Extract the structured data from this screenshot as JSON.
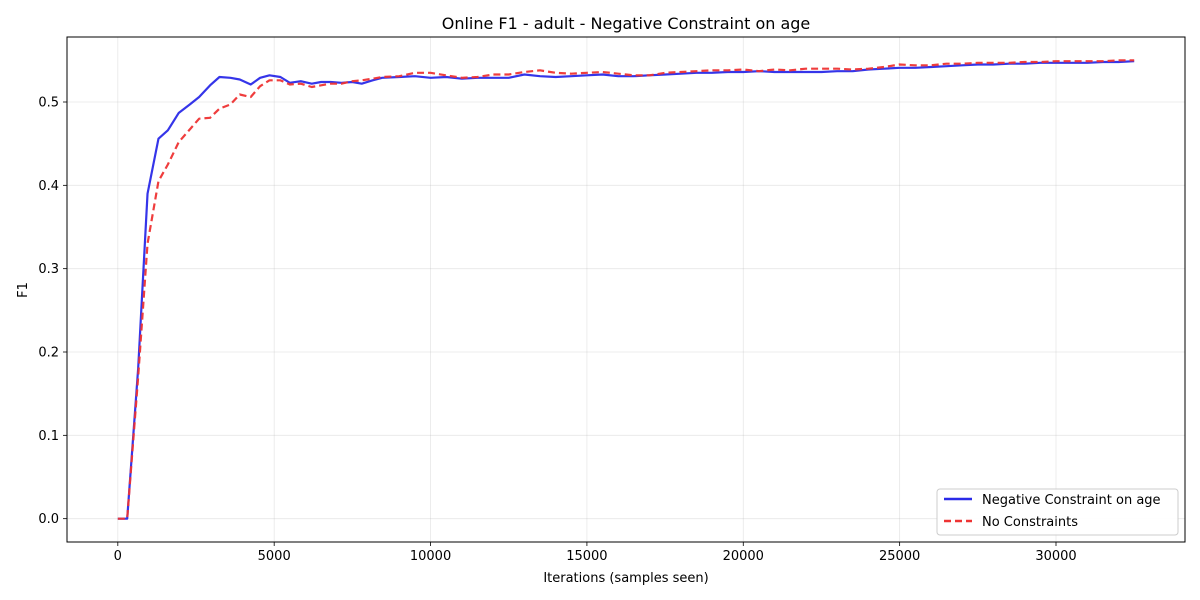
{
  "chart_data": {
    "type": "line",
    "title": "Online F1 - adult - Negative Constraint on age",
    "xlabel": "Iterations (samples seen)",
    "ylabel": "F1",
    "xlim": [
      -1625,
      34125
    ],
    "ylim": [
      -0.028,
      0.578
    ],
    "x_ticks": [
      0,
      5000,
      10000,
      15000,
      20000,
      25000,
      30000
    ],
    "y_ticks": [
      0.0,
      0.1,
      0.2,
      0.3,
      0.4,
      0.5
    ],
    "x_tick_labels": [
      "0",
      "5000",
      "10000",
      "15000",
      "20000",
      "25000",
      "30000"
    ],
    "y_tick_labels": [
      "0.0",
      "0.1",
      "0.2",
      "0.3",
      "0.4",
      "0.5"
    ],
    "grid": true,
    "legend_position": "lower-right",
    "series": [
      {
        "name": "Negative Constraint on age",
        "color": "#2a2ae8",
        "style": "solid",
        "x": [
          0,
          300,
          650,
          950,
          1300,
          1600,
          1950,
          2300,
          2600,
          2950,
          3250,
          3600,
          3900,
          4250,
          4550,
          4850,
          5200,
          5500,
          5850,
          6200,
          6500,
          6800,
          7150,
          7500,
          7800,
          8150,
          8450,
          9000,
          9500,
          10000,
          10500,
          11000,
          11500,
          12000,
          12500,
          13000,
          13500,
          14000,
          14500,
          15000,
          15500,
          16000,
          16500,
          17000,
          17500,
          18000,
          18500,
          19000,
          19500,
          20000,
          20500,
          21000,
          21500,
          22000,
          22500,
          23000,
          23500,
          24000,
          24500,
          25000,
          25500,
          26000,
          26500,
          27000,
          27500,
          28000,
          28500,
          29000,
          29500,
          30000,
          30500,
          31000,
          31500,
          32000,
          32500
        ],
        "values": [
          0.0,
          0.0,
          0.18,
          0.39,
          0.456,
          0.466,
          0.487,
          0.497,
          0.506,
          0.52,
          0.53,
          0.529,
          0.527,
          0.521,
          0.529,
          0.532,
          0.53,
          0.523,
          0.525,
          0.522,
          0.524,
          0.524,
          0.523,
          0.524,
          0.522,
          0.526,
          0.529,
          0.53,
          0.531,
          0.529,
          0.53,
          0.528,
          0.529,
          0.529,
          0.529,
          0.533,
          0.531,
          0.53,
          0.531,
          0.532,
          0.533,
          0.531,
          0.531,
          0.532,
          0.533,
          0.534,
          0.535,
          0.535,
          0.536,
          0.536,
          0.537,
          0.536,
          0.536,
          0.536,
          0.536,
          0.537,
          0.537,
          0.539,
          0.54,
          0.541,
          0.541,
          0.542,
          0.543,
          0.544,
          0.545,
          0.545,
          0.546,
          0.546,
          0.547,
          0.547,
          0.547,
          0.547,
          0.548,
          0.548,
          0.549
        ]
      },
      {
        "name": "No Constraints",
        "color": "#ee3333",
        "style": "dashed",
        "x": [
          0,
          300,
          650,
          950,
          1300,
          1600,
          1950,
          2300,
          2600,
          2950,
          3250,
          3600,
          3900,
          4250,
          4550,
          4850,
          5200,
          5500,
          5850,
          6200,
          6500,
          6800,
          7150,
          7500,
          7800,
          8150,
          8450,
          9000,
          9500,
          10000,
          10500,
          11000,
          11500,
          12000,
          12500,
          13000,
          13500,
          14000,
          14500,
          15000,
          15500,
          16000,
          16500,
          17000,
          17500,
          18000,
          18500,
          19000,
          19500,
          20000,
          20500,
          21000,
          21500,
          22000,
          22500,
          23000,
          23500,
          24000,
          24500,
          25000,
          25500,
          26000,
          26500,
          27000,
          27500,
          28000,
          28500,
          29000,
          29500,
          30000,
          30500,
          31000,
          31500,
          32000,
          32500
        ],
        "values": [
          0.0,
          0.0,
          0.17,
          0.33,
          0.405,
          0.425,
          0.452,
          0.467,
          0.48,
          0.481,
          0.492,
          0.497,
          0.509,
          0.506,
          0.519,
          0.526,
          0.526,
          0.521,
          0.522,
          0.518,
          0.52,
          0.522,
          0.522,
          0.525,
          0.526,
          0.528,
          0.53,
          0.531,
          0.535,
          0.535,
          0.532,
          0.529,
          0.53,
          0.533,
          0.533,
          0.536,
          0.538,
          0.535,
          0.534,
          0.535,
          0.536,
          0.534,
          0.532,
          0.532,
          0.535,
          0.536,
          0.537,
          0.538,
          0.538,
          0.539,
          0.537,
          0.539,
          0.538,
          0.54,
          0.54,
          0.54,
          0.539,
          0.54,
          0.542,
          0.545,
          0.544,
          0.544,
          0.546,
          0.546,
          0.547,
          0.547,
          0.547,
          0.548,
          0.548,
          0.549,
          0.549,
          0.549,
          0.549,
          0.55,
          0.55
        ]
      }
    ]
  }
}
